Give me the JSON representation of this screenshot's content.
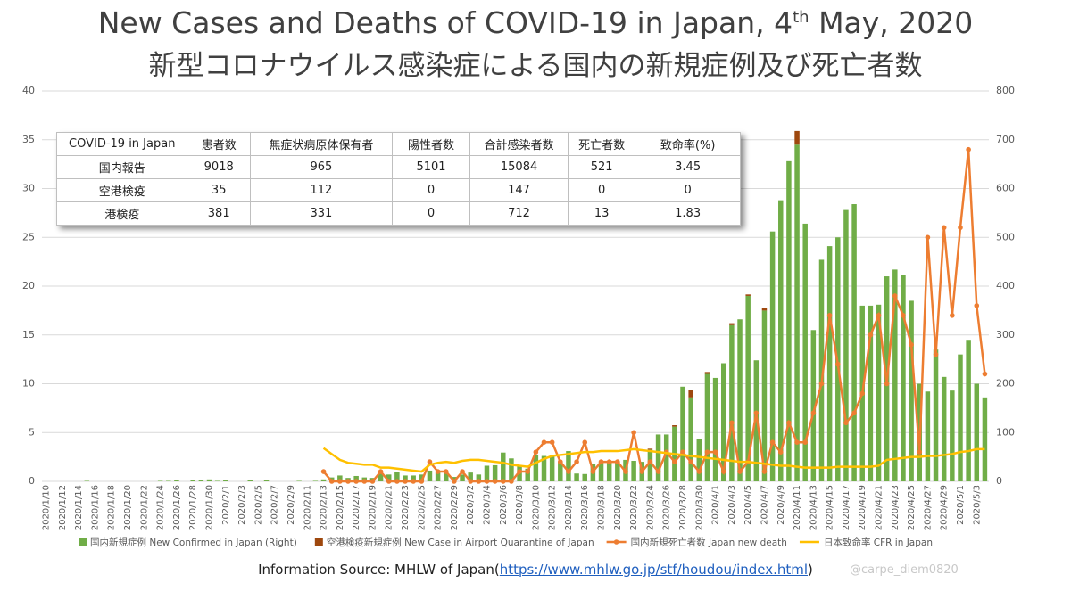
{
  "chart_data": {
    "type": "bar",
    "title_parts": [
      "New Cases and Deaths of COVID-19 in Japan, 4",
      "th",
      " May, 2020"
    ],
    "subtitle": "新型コロナウイルス感染症による国内の新規症例及び死亡者数",
    "categories": [
      "2020/1/10",
      null,
      "2020/1/12",
      null,
      "2020/1/14",
      null,
      "2020/1/16",
      null,
      "2020/1/18",
      null,
      "2020/1/20",
      null,
      "2020/1/22",
      null,
      "2020/1/24",
      null,
      "2020/1/26",
      null,
      "2020/1/28",
      null,
      "2020/1/30",
      null,
      "2020/2/1",
      null,
      "2020/2/3",
      null,
      "2020/2/5",
      null,
      "2020/2/7",
      null,
      "2020/2/9",
      null,
      "2020/2/11",
      null,
      "2020/2/13",
      null,
      "2020/2/15",
      null,
      "2020/2/17",
      null,
      "2020/2/19",
      null,
      "2020/2/21",
      null,
      "2020/2/23",
      null,
      "2020/2/25",
      null,
      "2020/2/27",
      null,
      "2020/2/29",
      null,
      "2020/3/2",
      null,
      "2020/3/4",
      null,
      "2020/3/6",
      null,
      "2020/3/8",
      null,
      "2020/3/10",
      null,
      "2020/3/12",
      null,
      "2020/3/14",
      null,
      "2020/3/16",
      null,
      "2020/3/18",
      null,
      "2020/3/20",
      null,
      "2020/3/22",
      null,
      "2020/3/24",
      null,
      "2020/3/26",
      null,
      "2020/3/28",
      null,
      "2020/3/30",
      null,
      "2020/4/1",
      null,
      "2020/4/3",
      null,
      "2020/4/5",
      null,
      "2020/4/7",
      null,
      "2020/4/9",
      null,
      "2020/4/11",
      null,
      "2020/4/13",
      null,
      "2020/4/15",
      null,
      "2020/4/17",
      null,
      "2020/4/19",
      null,
      "2020/4/21",
      null,
      "2020/4/23",
      null,
      "2020/4/25",
      null,
      "2020/4/27",
      null,
      "2020/4/29",
      null,
      "2020/5/1",
      null,
      "2020/5/3",
      null
    ],
    "series": [
      {
        "name": "国内新規症例 New Confirmed in Japan (Right)",
        "type": "bar",
        "axis": "y2",
        "color": "#70ad47",
        "values": [
          0,
          0,
          0,
          0,
          0,
          1,
          0,
          0,
          0,
          0,
          0,
          0,
          0,
          0,
          1,
          1,
          2,
          0,
          2,
          2,
          4,
          1,
          2,
          0,
          0,
          2,
          0,
          2,
          0,
          0,
          0,
          1,
          0,
          1,
          4,
          8,
          12,
          7,
          11,
          8,
          7,
          17,
          14,
          20,
          12,
          12,
          14,
          22,
          20,
          21,
          9,
          14,
          18,
          14,
          32,
          33,
          59,
          47,
          33,
          26,
          54,
          52,
          54,
          41,
          62,
          16,
          15,
          36,
          39,
          40,
          40,
          44,
          42,
          40,
          65,
          96,
          96,
          112,
          194,
          172,
          87,
          220,
          212,
          242,
          320,
          332,
          380,
          248,
          350,
          512,
          576,
          656,
          690,
          528,
          310,
          454,
          482,
          500,
          556,
          568,
          360,
          360,
          362,
          420,
          434,
          422,
          370,
          200,
          184,
          270,
          214,
          186,
          260,
          290,
          200,
          172
        ]
      },
      {
        "name": "空港検疫新規症例 New Case in Airport Quarantine of Japan",
        "type": "bar",
        "axis": "y2",
        "color": "#9e480e",
        "values": [
          0,
          0,
          0,
          0,
          0,
          0,
          0,
          0,
          0,
          0,
          0,
          0,
          0,
          0,
          0,
          0,
          0,
          0,
          0,
          0,
          0,
          0,
          0,
          0,
          0,
          0,
          0,
          0,
          0,
          0,
          0,
          0,
          0,
          0,
          0,
          0,
          0,
          0,
          0,
          0,
          0,
          0,
          0,
          0,
          0,
          0,
          0,
          0,
          0,
          0,
          0,
          0,
          0,
          0,
          0,
          0,
          0,
          0,
          0,
          0,
          0,
          0,
          0,
          0,
          0,
          0,
          0,
          0,
          0,
          0,
          0,
          0,
          0,
          0,
          2,
          0,
          0,
          3,
          0,
          15,
          0,
          4,
          0,
          0,
          4,
          0,
          3,
          0,
          6,
          0,
          0,
          0,
          28,
          0,
          0,
          0,
          0,
          0,
          0,
          0,
          0,
          0,
          0,
          0,
          0,
          0,
          0,
          0,
          0,
          0,
          0,
          0,
          0,
          0,
          0,
          0
        ]
      },
      {
        "name": "国内新規死亡者数 Japan new death",
        "type": "line",
        "marker": true,
        "color": "#ed7d31",
        "values": [
          null,
          null,
          null,
          null,
          null,
          null,
          null,
          null,
          null,
          null,
          null,
          null,
          null,
          null,
          null,
          null,
          null,
          null,
          null,
          null,
          null,
          null,
          null,
          null,
          null,
          null,
          null,
          null,
          null,
          null,
          null,
          null,
          null,
          null,
          1,
          0,
          0,
          0,
          0,
          0,
          0,
          1,
          0,
          0,
          0,
          0,
          0,
          2,
          1,
          1,
          0,
          1,
          0,
          0,
          0,
          0,
          0,
          0,
          1,
          1,
          3,
          4,
          4,
          2,
          1,
          2,
          4,
          1,
          2,
          2,
          2,
          1,
          5,
          1,
          2,
          1,
          3,
          2,
          3,
          2,
          1,
          3,
          3,
          1,
          6,
          1,
          2,
          7,
          1,
          4,
          3,
          6,
          4,
          4,
          7,
          10,
          17,
          12,
          6,
          7,
          9,
          15,
          17,
          10,
          19,
          17,
          14,
          3,
          25,
          13,
          26,
          17,
          26,
          34,
          18,
          11
        ]
      },
      {
        "name": "日本致命率 CFR in Japan",
        "type": "line",
        "marker": false,
        "color": "#ffc000",
        "values": [
          null,
          null,
          null,
          null,
          null,
          null,
          null,
          null,
          null,
          null,
          null,
          null,
          null,
          null,
          null,
          null,
          null,
          null,
          null,
          null,
          null,
          null,
          null,
          null,
          null,
          null,
          null,
          null,
          null,
          null,
          null,
          null,
          null,
          null,
          3.4,
          2.8,
          2.2,
          1.9,
          1.8,
          1.7,
          1.7,
          1.4,
          1.4,
          1.3,
          1.2,
          1.1,
          1.0,
          1.7,
          1.9,
          2.0,
          1.9,
          2.1,
          2.2,
          2.2,
          2.1,
          2.0,
          1.9,
          1.7,
          1.6,
          1.5,
          1.9,
          2.3,
          2.6,
          2.7,
          2.8,
          2.9,
          3.0,
          3.0,
          3.1,
          3.1,
          3.1,
          3.2,
          3.3,
          3.2,
          3.1,
          3.0,
          2.9,
          2.8,
          2.7,
          2.6,
          2.5,
          2.4,
          2.3,
          2.2,
          2.1,
          2.0,
          2.0,
          1.9,
          1.8,
          1.7,
          1.6,
          1.6,
          1.5,
          1.4,
          1.4,
          1.4,
          1.4,
          1.5,
          1.5,
          1.5,
          1.5,
          1.5,
          1.6,
          2.2,
          2.3,
          2.4,
          2.5,
          2.5,
          2.6,
          2.6,
          2.7,
          2.8,
          3.0,
          3.1,
          3.3,
          3.3
        ]
      }
    ],
    "ylim": [
      0,
      40
    ],
    "yticks": [
      0,
      5,
      10,
      15,
      20,
      25,
      30,
      35,
      40
    ],
    "y2lim": [
      0,
      800
    ],
    "y2ticks": [
      0,
      100,
      200,
      300,
      400,
      500,
      600,
      700,
      800
    ],
    "grid": true,
    "legend": "bottom"
  },
  "table": {
    "header": [
      "COVID-19 in Japan",
      "患者数",
      "無症状病原体保有者",
      "陽性者数",
      "合計感染者数",
      "死亡者数",
      "致命率(%)"
    ],
    "rows": [
      [
        "国内報告",
        9018,
        965,
        5101,
        15084,
        521,
        3.45
      ],
      [
        "空港検疫",
        35,
        112,
        0,
        147,
        0,
        0
      ],
      [
        "港検疫",
        381,
        331,
        0,
        712,
        13,
        1.83
      ]
    ]
  },
  "source": {
    "prefix": "Information Source: MHLW of Japan(",
    "link": "https://www.mhlw.go.jp/stf/houdou/index.html",
    "suffix": ")"
  },
  "watermark": "@carpe_diem0820"
}
